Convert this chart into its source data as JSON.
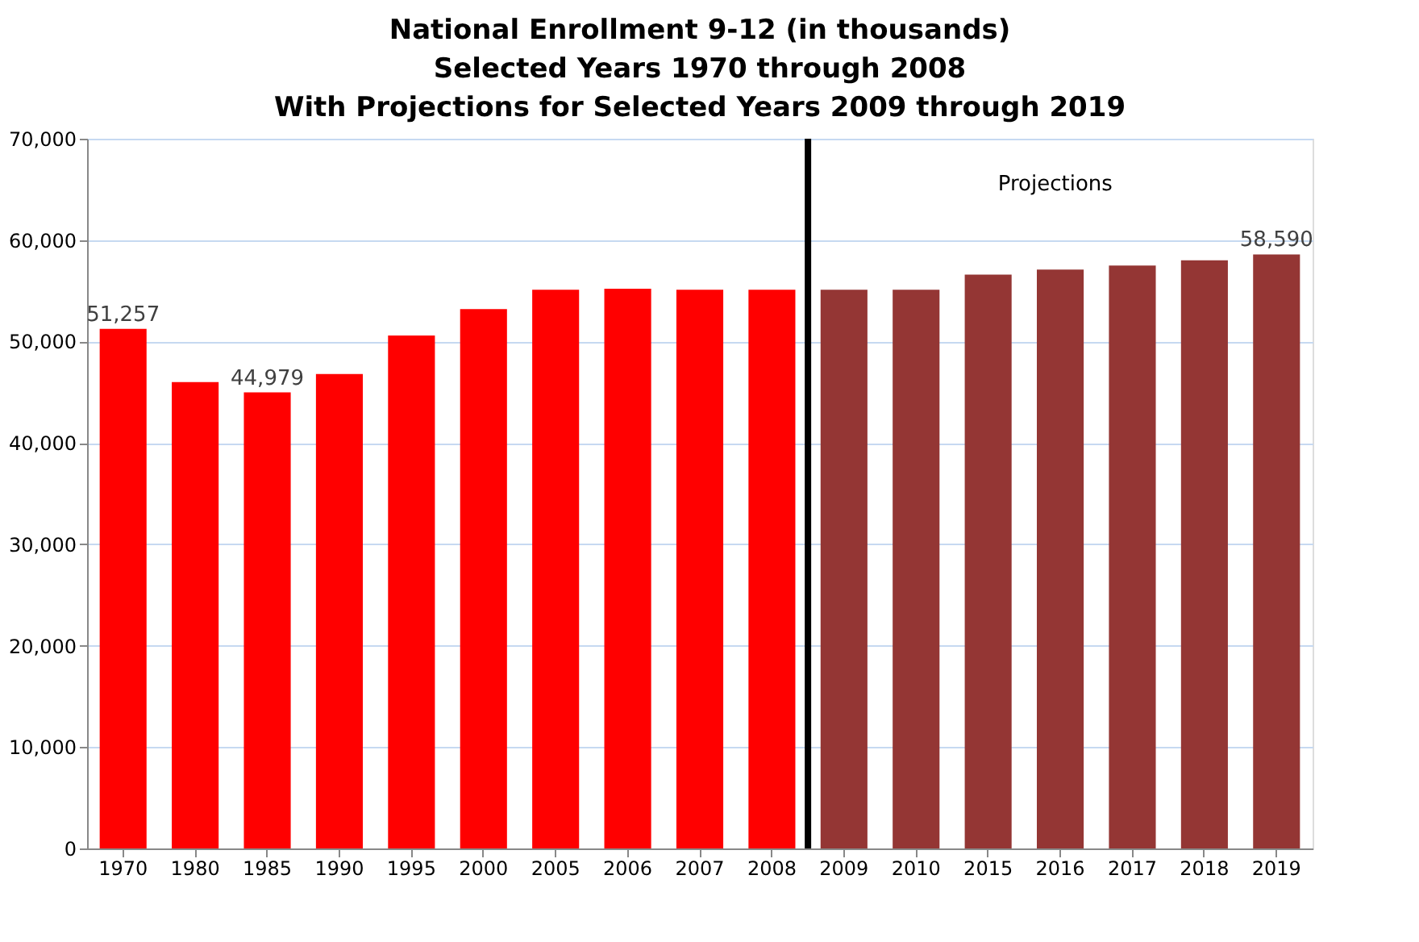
{
  "chart_data": {
    "type": "bar",
    "title": "National Enrollment 9-12 (in thousands)\nSelected Years 1970 through 2008\nWith Projections for Selected Years 2009 through 2019",
    "categories": [
      "1970",
      "1980",
      "1985",
      "1990",
      "1995",
      "2000",
      "2005",
      "2006",
      "2007",
      "2008",
      "2009",
      "2010",
      "2015",
      "2016",
      "2017",
      "2018",
      "2019"
    ],
    "series": [
      {
        "color": "#ff0000",
        "values": [
          51257,
          46000,
          44979,
          46800,
          50600,
          53200,
          55100,
          55200,
          55100,
          55100,
          null,
          null,
          null,
          null,
          null,
          null,
          null
        ],
        "value_labels": [
          "51,257",
          null,
          "44,979",
          null,
          null,
          null,
          null,
          null,
          null,
          null,
          null,
          null,
          null,
          null,
          null,
          null,
          null
        ]
      },
      {
        "color": "#943634",
        "values": [
          null,
          null,
          null,
          null,
          null,
          null,
          null,
          null,
          null,
          null,
          55100,
          55100,
          56600,
          57100,
          57500,
          58000,
          58590
        ],
        "value_labels": [
          null,
          null,
          null,
          null,
          null,
          null,
          null,
          null,
          null,
          null,
          null,
          null,
          null,
          null,
          null,
          null,
          "58,590"
        ]
      }
    ],
    "ylim": [
      0,
      70000
    ],
    "yticks": [
      0,
      {
        "value": 10000,
        "label": "10,000"
      },
      {
        "value": 20000,
        "label": "20,000"
      },
      {
        "value": 30000,
        "label": "30,000"
      },
      {
        "value": 40000,
        "label": "40,000"
      },
      {
        "value": 50000,
        "label": "50,000"
      },
      {
        "value": 60000,
        "label": "60,000"
      },
      {
        "value": 70000,
        "label": "70,000"
      }
    ],
    "grid": "y",
    "ref_lines": [
      {
        "axis": "x",
        "value": "2009",
        "color": "#000000"
      }
    ],
    "annotations": [
      "Projections"
    ]
  }
}
